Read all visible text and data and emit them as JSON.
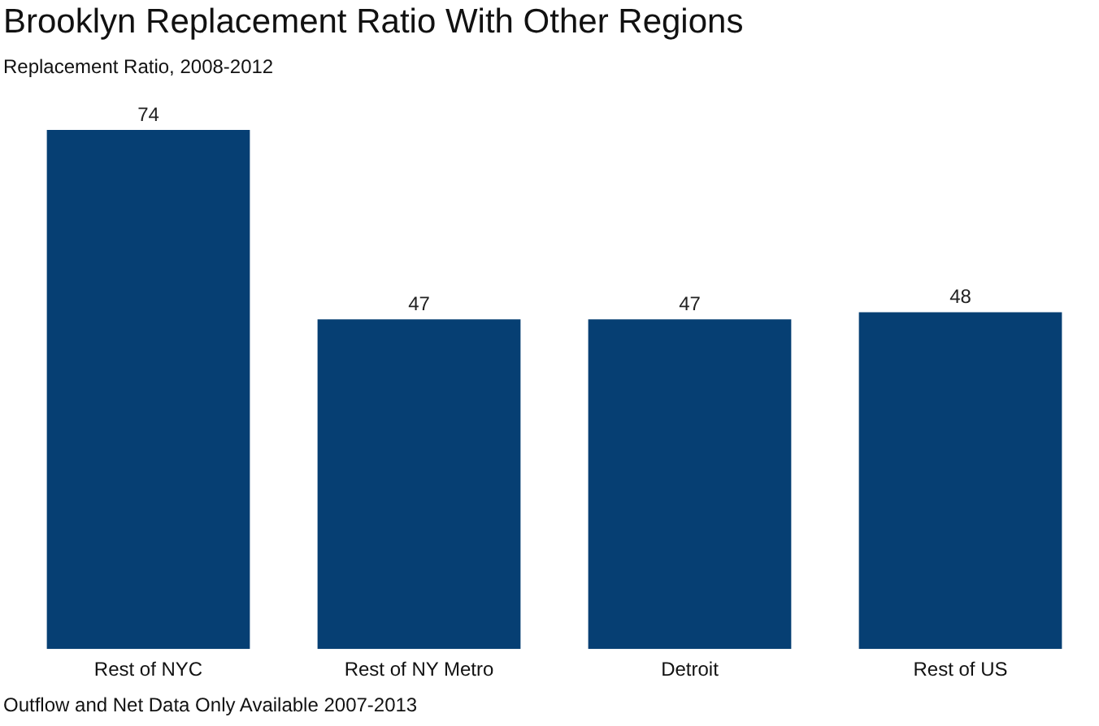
{
  "chart_data": {
    "type": "bar",
    "title": "Brooklyn Replacement Ratio With Other Regions",
    "subtitle": "Replacement Ratio, 2008-2012",
    "categories": [
      "Rest of NYC",
      "Rest of NY Metro",
      "Detroit",
      "Rest of US"
    ],
    "values": [
      74,
      47,
      47,
      48
    ],
    "color": "#063f73",
    "data_labels": true,
    "relative": false,
    "grid": false,
    "legend": false,
    "annotations": [
      "Outflow and Net Data Only Available 2007-2013"
    ]
  }
}
